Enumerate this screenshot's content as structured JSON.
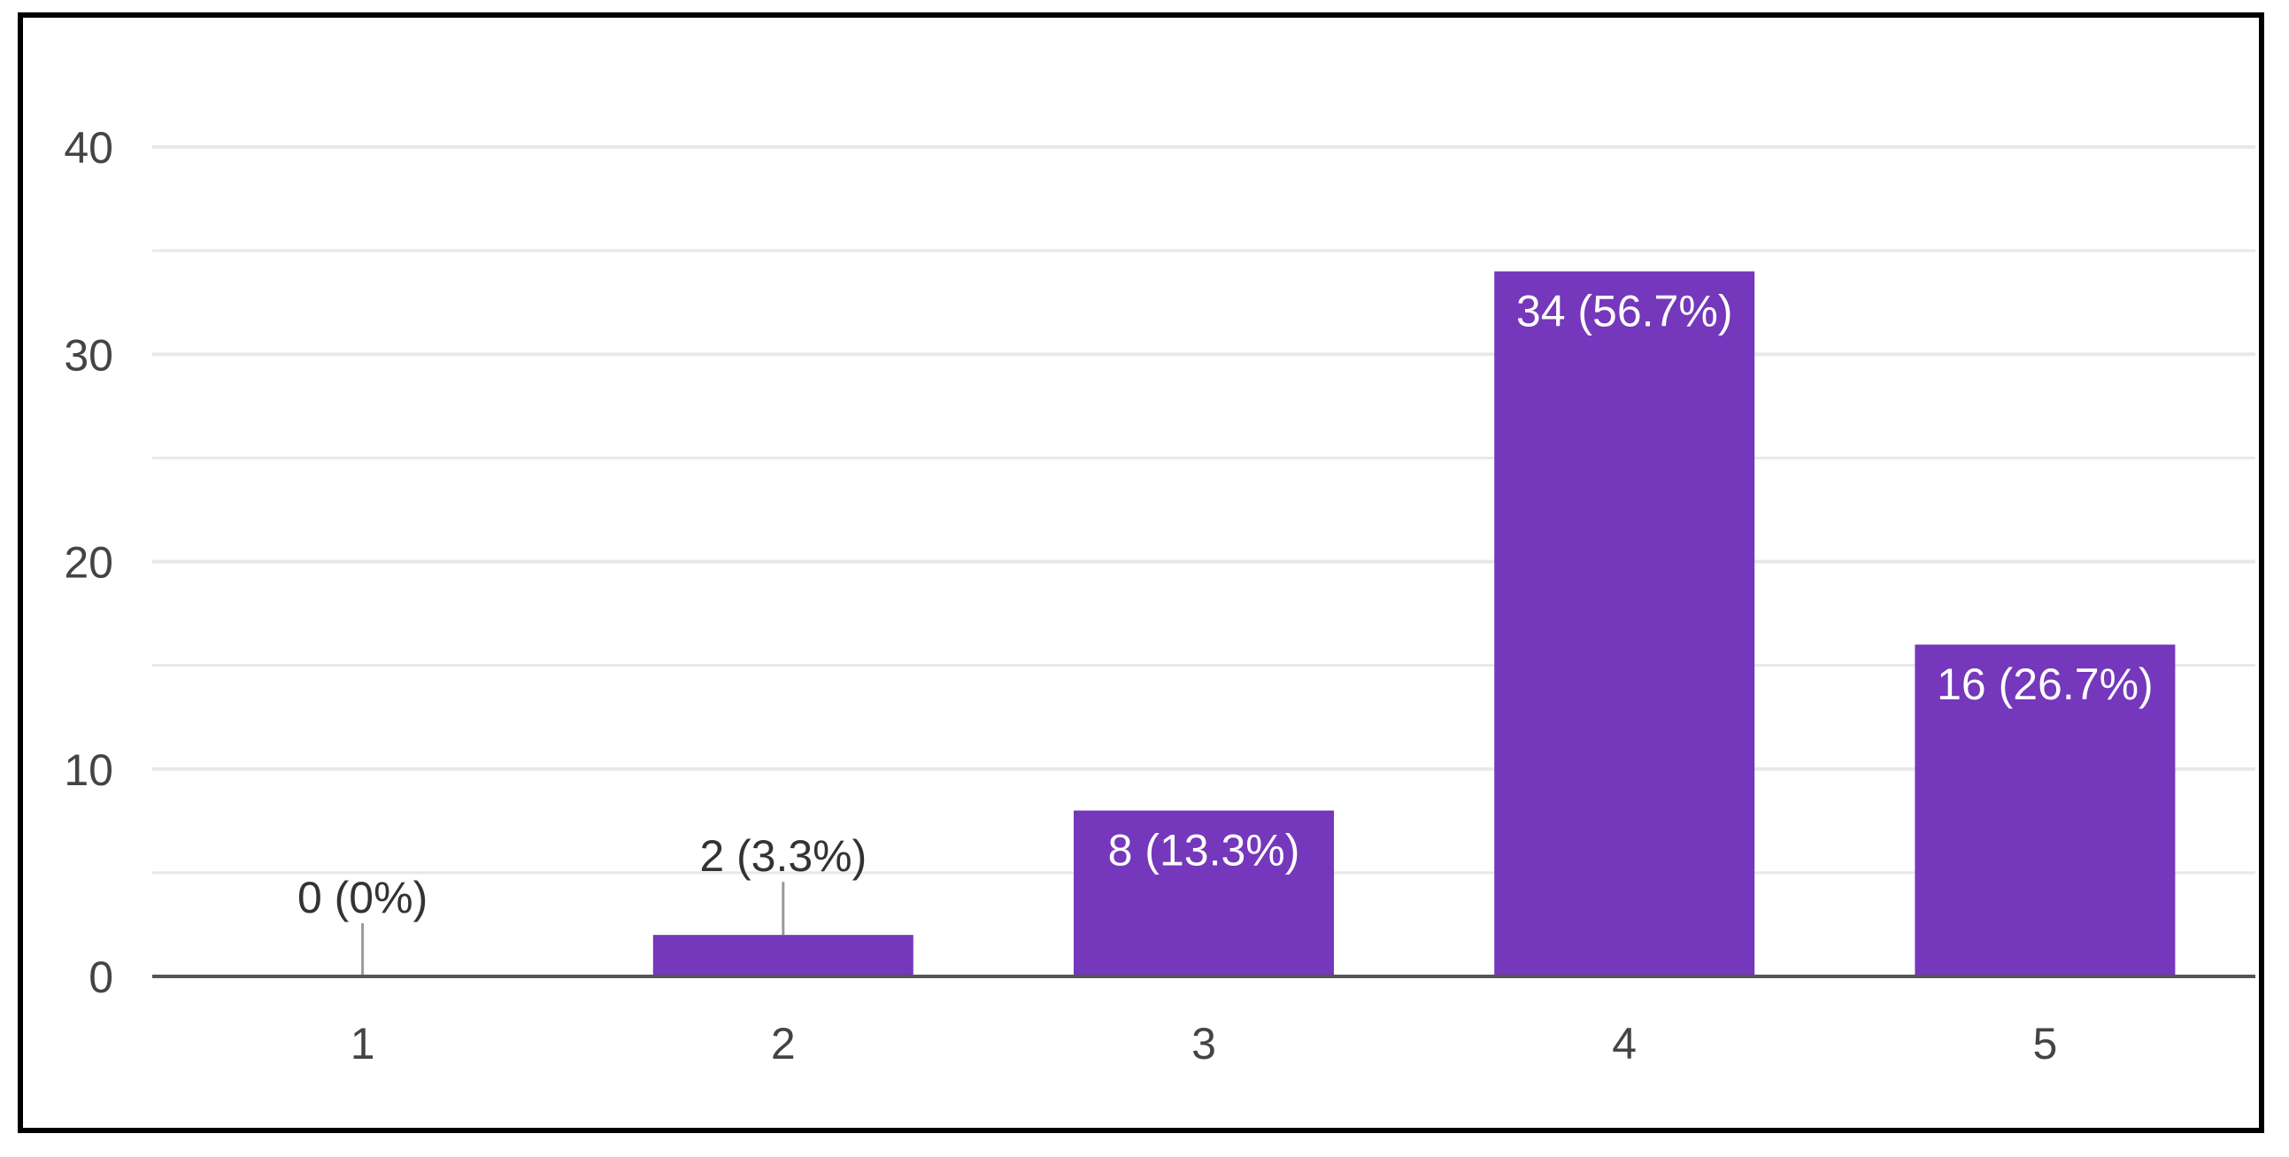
{
  "chart_data": {
    "type": "bar",
    "categories": [
      "1",
      "2",
      "3",
      "4",
      "5"
    ],
    "values": [
      0,
      2,
      8,
      34,
      16
    ],
    "data_labels": [
      "0 (0%)",
      "2 (3.3%)",
      "8 (13.3%)",
      "34 (56.7%)",
      "16 (26.7%)"
    ],
    "y_ticks": [
      "0",
      "10",
      "20",
      "30",
      "40"
    ],
    "ylim": [
      0,
      40
    ],
    "title": "",
    "xlabel": "",
    "ylabel": "",
    "grid": true,
    "legend": "none",
    "colors": {
      "bar": "#7537bb",
      "grid": "#e8e8e8",
      "axis": "#555555",
      "label_inside": "#ffffff",
      "label_outside": "#333333"
    }
  }
}
